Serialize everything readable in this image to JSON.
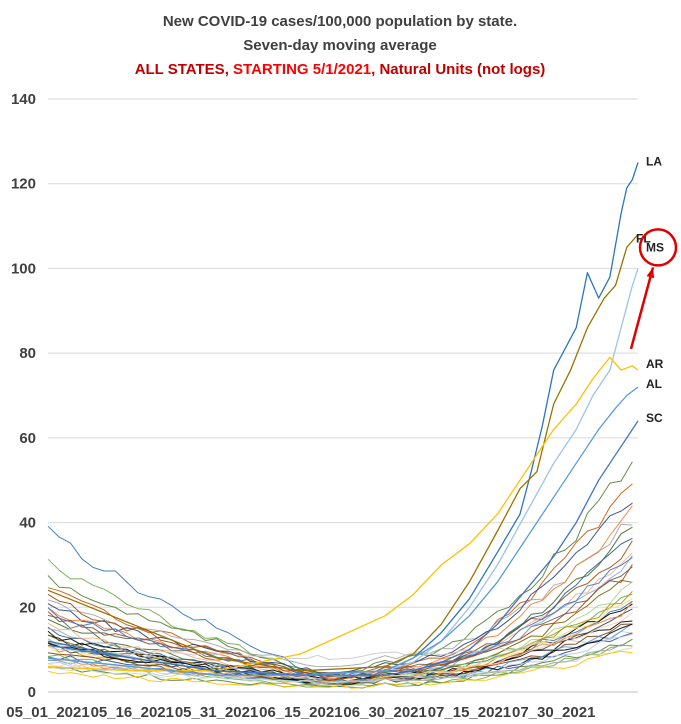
{
  "chart_data": {
    "type": "line",
    "title_parts": {
      "line1": "New COVID-19 cases/100,000 population by state.",
      "line2": "Seven-day moving average",
      "line3_a": "ALL STATES, ",
      "line3_b": "STARTING 5/1/2021",
      "line3_c": ", Natural Units (not logs)"
    },
    "colors": {
      "title_dark": "#404040",
      "title_red": "#c00000",
      "title_bright_red": "#ff0000",
      "annotation": "#e00000",
      "grid": "#d9d9d9"
    },
    "xlabel": "",
    "ylabel": "",
    "ylim": [
      0,
      140
    ],
    "yticks": [
      0,
      20,
      40,
      60,
      80,
      100,
      120,
      140
    ],
    "grid": "horizontal",
    "date_range": [
      "2021-05-01",
      "2021-08-14"
    ],
    "x_ticks": [
      {
        "date": "2021-05-01",
        "label": "05_01_2021"
      },
      {
        "date": "2021-05-16",
        "label": "05_16_2021"
      },
      {
        "date": "2021-05-31",
        "label": "05_31_2021"
      },
      {
        "date": "2021-06-15",
        "label": "06_15_2021"
      },
      {
        "date": "2021-06-30",
        "label": "06_30_2021"
      },
      {
        "date": "2021-07-15",
        "label": "07_15_2021"
      },
      {
        "date": "2021-07-30",
        "label": "07_30_2021"
      }
    ],
    "labeled_series": [
      {
        "name": "LA",
        "color": "#2e75b6",
        "points": [
          [
            "2021-05-01",
            12
          ],
          [
            "2021-05-16",
            8
          ],
          [
            "2021-05-31",
            5
          ],
          [
            "2021-06-15",
            4
          ],
          [
            "2021-06-30",
            5
          ],
          [
            "2021-07-05",
            8
          ],
          [
            "2021-07-10",
            14
          ],
          [
            "2021-07-15",
            22
          ],
          [
            "2021-07-20",
            33
          ],
          [
            "2021-07-24",
            42
          ],
          [
            "2021-07-26",
            52
          ],
          [
            "2021-07-28",
            63
          ],
          [
            "2021-07-30",
            76
          ],
          [
            "2021-08-01",
            81
          ],
          [
            "2021-08-03",
            86
          ],
          [
            "2021-08-05",
            99
          ],
          [
            "2021-08-07",
            93
          ],
          [
            "2021-08-09",
            98
          ],
          [
            "2021-08-11",
            113
          ],
          [
            "2021-08-12",
            119
          ],
          [
            "2021-08-13",
            121
          ],
          [
            "2021-08-14",
            125
          ]
        ]
      },
      {
        "name": "FL",
        "color": "#997300",
        "points": [
          [
            "2021-05-01",
            24
          ],
          [
            "2021-05-16",
            16
          ],
          [
            "2021-05-31",
            8
          ],
          [
            "2021-06-15",
            5
          ],
          [
            "2021-06-30",
            6
          ],
          [
            "2021-07-05",
            9
          ],
          [
            "2021-07-10",
            16
          ],
          [
            "2021-07-15",
            26
          ],
          [
            "2021-07-20",
            38
          ],
          [
            "2021-07-24",
            48
          ],
          [
            "2021-07-27",
            52
          ],
          [
            "2021-07-30",
            68
          ],
          [
            "2021-08-02",
            76
          ],
          [
            "2021-08-05",
            86
          ],
          [
            "2021-08-08",
            93
          ],
          [
            "2021-08-10",
            96
          ],
          [
            "2021-08-12",
            105
          ],
          [
            "2021-08-14",
            108
          ]
        ]
      },
      {
        "name": "MS",
        "color": "#9dc3e6",
        "points": [
          [
            "2021-05-01",
            8
          ],
          [
            "2021-05-16",
            6
          ],
          [
            "2021-05-31",
            4
          ],
          [
            "2021-06-15",
            4
          ],
          [
            "2021-06-30",
            5
          ],
          [
            "2021-07-05",
            7
          ],
          [
            "2021-07-10",
            12
          ],
          [
            "2021-07-15",
            20
          ],
          [
            "2021-07-20",
            30
          ],
          [
            "2021-07-25",
            42
          ],
          [
            "2021-07-30",
            54
          ],
          [
            "2021-08-03",
            62
          ],
          [
            "2021-08-06",
            70
          ],
          [
            "2021-08-09",
            76
          ],
          [
            "2021-08-11",
            86
          ],
          [
            "2021-08-13",
            96
          ],
          [
            "2021-08-14",
            100
          ]
        ]
      },
      {
        "name": "AR",
        "color": "#ffc000",
        "points": [
          [
            "2021-05-01",
            6
          ],
          [
            "2021-05-16",
            5
          ],
          [
            "2021-05-31",
            5
          ],
          [
            "2021-06-15",
            9
          ],
          [
            "2021-06-30",
            18
          ],
          [
            "2021-07-05",
            23
          ],
          [
            "2021-07-10",
            30
          ],
          [
            "2021-07-15",
            35
          ],
          [
            "2021-07-20",
            42
          ],
          [
            "2021-07-25",
            52
          ],
          [
            "2021-07-30",
            62
          ],
          [
            "2021-08-03",
            68
          ],
          [
            "2021-08-06",
            74
          ],
          [
            "2021-08-09",
            79
          ],
          [
            "2021-08-11",
            76
          ],
          [
            "2021-08-13",
            77
          ],
          [
            "2021-08-14",
            76
          ]
        ]
      },
      {
        "name": "AL",
        "color": "#5b9bd5",
        "points": [
          [
            "2021-05-01",
            8
          ],
          [
            "2021-05-16",
            6
          ],
          [
            "2021-05-31",
            4
          ],
          [
            "2021-06-15",
            4
          ],
          [
            "2021-06-30",
            5
          ],
          [
            "2021-07-05",
            8
          ],
          [
            "2021-07-10",
            12
          ],
          [
            "2021-07-15",
            18
          ],
          [
            "2021-07-20",
            26
          ],
          [
            "2021-07-25",
            36
          ],
          [
            "2021-07-30",
            46
          ],
          [
            "2021-08-03",
            54
          ],
          [
            "2021-08-07",
            62
          ],
          [
            "2021-08-10",
            67
          ],
          [
            "2021-08-12",
            70
          ],
          [
            "2021-08-14",
            72
          ]
        ]
      },
      {
        "name": "SC",
        "color": "#4472c4",
        "points": [
          [
            "2021-05-01",
            11
          ],
          [
            "2021-05-16",
            8
          ],
          [
            "2021-05-31",
            5
          ],
          [
            "2021-06-15",
            4
          ],
          [
            "2021-06-30",
            4
          ],
          [
            "2021-07-05",
            5
          ],
          [
            "2021-07-10",
            7
          ],
          [
            "2021-07-15",
            10
          ],
          [
            "2021-07-20",
            16
          ],
          [
            "2021-07-25",
            24
          ],
          [
            "2021-07-30",
            32
          ],
          [
            "2021-08-03",
            40
          ],
          [
            "2021-08-07",
            50
          ],
          [
            "2021-08-10",
            56
          ],
          [
            "2021-08-12",
            60
          ],
          [
            "2021-08-14",
            64
          ]
        ]
      }
    ],
    "other_states_approx": [
      {
        "color": "#2e75b6",
        "start": 40,
        "trough": 3,
        "end": 22
      },
      {
        "color": "#70ad47",
        "start": 32,
        "trough": 3,
        "end": 24
      },
      {
        "color": "#548235",
        "start": 28,
        "trough": 4,
        "end": 57
      },
      {
        "color": "#c55a11",
        "start": 25,
        "trough": 3,
        "end": 52
      },
      {
        "color": "#a5a5a5",
        "start": 22,
        "trough": 6,
        "end": 42
      },
      {
        "color": "#264478",
        "start": 21,
        "trough": 4,
        "end": 48
      },
      {
        "color": "#ed7d31",
        "start": 20,
        "trough": 3,
        "end": 44
      },
      {
        "color": "#9e480e",
        "start": 19,
        "trough": 3,
        "end": 36
      },
      {
        "color": "#636363",
        "start": 18,
        "trough": 4,
        "end": 30
      },
      {
        "color": "#43682b",
        "start": 17,
        "trough": 2,
        "end": 40
      },
      {
        "color": "#f4b183",
        "start": 16,
        "trough": 3,
        "end": 34
      },
      {
        "color": "#255e91",
        "start": 15,
        "trough": 2,
        "end": 38
      },
      {
        "color": "#000000",
        "start": 14,
        "trough": 2,
        "end": 22
      },
      {
        "color": "#000000",
        "start": 13,
        "trough": 3,
        "end": 18
      },
      {
        "color": "#7f6000",
        "start": 13,
        "trough": 2,
        "end": 28
      },
      {
        "color": "#8faadc",
        "start": 12,
        "trough": 3,
        "end": 32
      },
      {
        "color": "#a9d18e",
        "start": 12,
        "trough": 2,
        "end": 26
      },
      {
        "color": "#bf9000",
        "start": 11,
        "trough": 2,
        "end": 24
      },
      {
        "color": "#333f50",
        "start": 11,
        "trough": 2,
        "end": 20
      },
      {
        "color": "#c9c9c9",
        "start": 10,
        "trough": 8,
        "end": 14
      },
      {
        "color": "#ffd966",
        "start": 10,
        "trough": 2,
        "end": 23
      },
      {
        "color": "#843c0c",
        "start": 10,
        "trough": 2,
        "end": 17
      },
      {
        "color": "#2f5597",
        "start": 9,
        "trough": 2,
        "end": 15
      },
      {
        "color": "#70ad47",
        "start": 9,
        "trough": 1,
        "end": 12
      },
      {
        "color": "#ed7d31",
        "start": 8,
        "trough": 2,
        "end": 21
      },
      {
        "color": "#5b9bd5",
        "start": 8,
        "trough": 2,
        "end": 16
      },
      {
        "color": "#000000",
        "start": 12,
        "trough": 2,
        "end": 16
      },
      {
        "color": "#f8cbad",
        "start": 7,
        "trough": 3,
        "end": 19
      },
      {
        "color": "#b4c7e7",
        "start": 7,
        "trough": 2,
        "end": 14
      },
      {
        "color": "#548235",
        "start": 6,
        "trough": 1,
        "end": 13
      },
      {
        "color": "#c5e0b4",
        "start": 6,
        "trough": 2,
        "end": 11
      },
      {
        "color": "#ffc000",
        "start": 5,
        "trough": 1,
        "end": 10
      },
      {
        "color": "#4472c4",
        "start": 20,
        "trough": 3,
        "end": 34
      },
      {
        "color": "#a5a5a5",
        "start": 15,
        "trough": 2,
        "end": 12
      },
      {
        "color": "#9e480e",
        "start": 23,
        "trough": 3,
        "end": 30
      }
    ],
    "annotation": {
      "type": "circle-and-arrow",
      "target": "MS"
    }
  }
}
